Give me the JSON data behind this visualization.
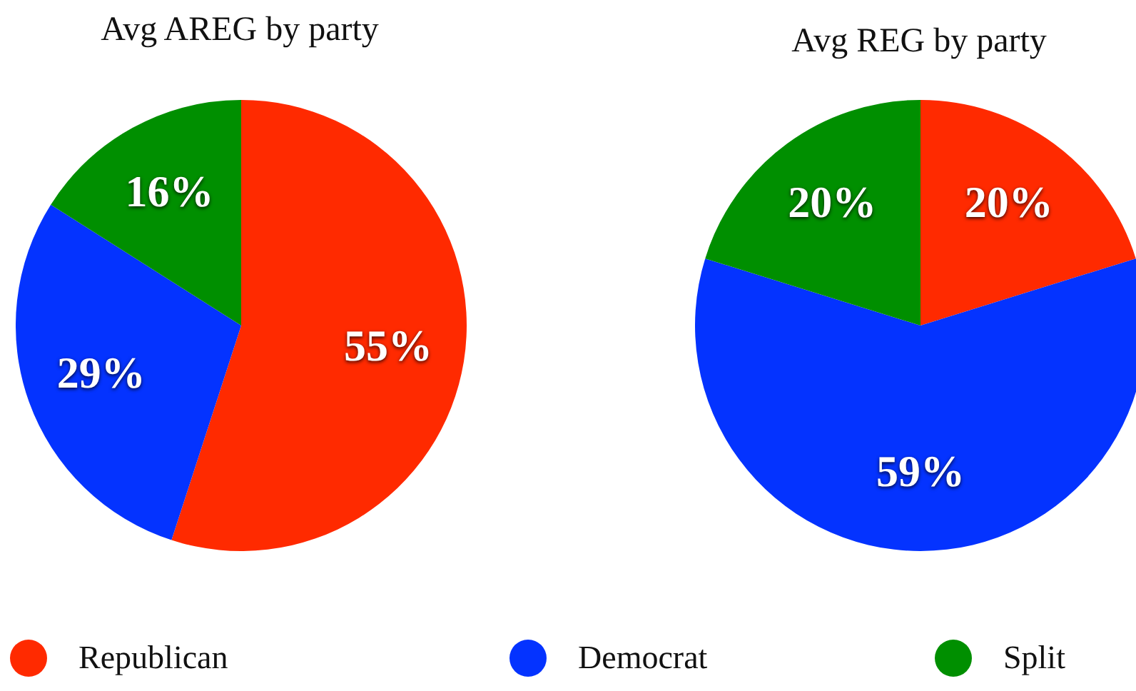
{
  "chart_data": [
    {
      "type": "pie",
      "title": "Avg AREG by party",
      "categories": [
        "Republican",
        "Democrat",
        "Split"
      ],
      "values": [
        55,
        29,
        16
      ],
      "colors": [
        "#ff2a00",
        "#0433ff",
        "#008f00"
      ],
      "value_labels": [
        "55%",
        "29%",
        "16%"
      ],
      "legend": "bottom"
    },
    {
      "type": "pie",
      "title": "Avg REG by party",
      "categories": [
        null,
        null,
        null
      ],
      "values": [
        20,
        59,
        20
      ],
      "colors": [
        "#ff2a00",
        "#0433ff",
        "#008f00"
      ],
      "value_labels": [
        "20%",
        "59%",
        "20%"
      ]
    }
  ]
}
